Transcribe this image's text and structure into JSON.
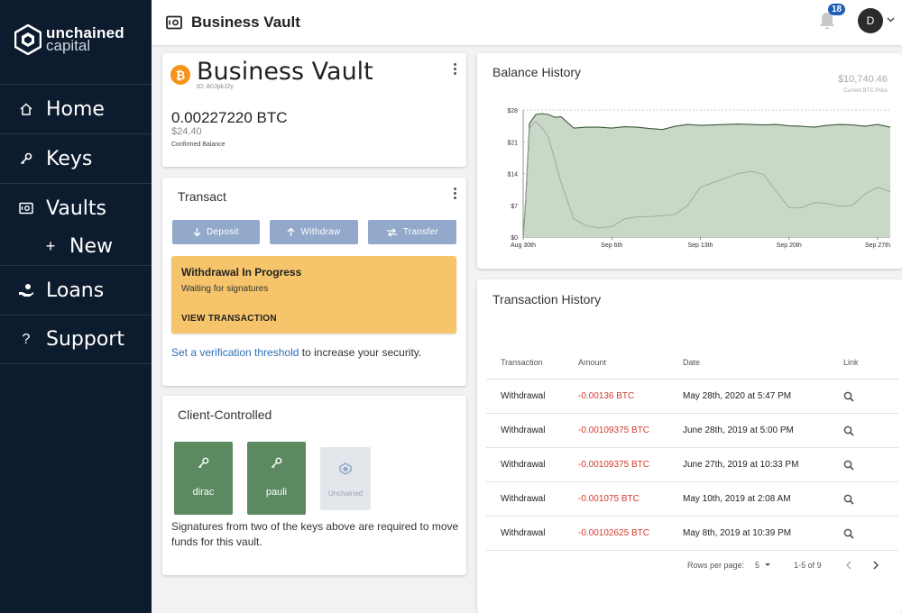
{
  "brand": {
    "line1": "unchained",
    "line2": "capital"
  },
  "nav": {
    "items": [
      {
        "label": "Home",
        "icon": "home-icon"
      },
      {
        "label": "Keys",
        "icon": "key-icon"
      },
      {
        "label": "Vaults",
        "icon": "vault-icon"
      },
      {
        "label": "New",
        "icon": "plus-icon"
      },
      {
        "label": "Loans",
        "icon": "hand-coin-icon"
      },
      {
        "label": "Support",
        "icon": "question-icon"
      }
    ]
  },
  "topbar": {
    "title": "Business Vault",
    "notifications": "18",
    "avatar": "D"
  },
  "vault": {
    "name": "Business Vault",
    "id": "ID: A0JpkJ2y",
    "coin_symbol": "₿",
    "balance_btc": "0.00227220 BTC",
    "balance_usd": "$24.40",
    "balance_label": "Confirmed Balance"
  },
  "transact": {
    "title": "Transact",
    "deposit": "Deposit",
    "withdraw": "Withdraw",
    "transfer": "Transfer",
    "warning_title": "Withdrawal In Progress",
    "warning_sub": "Waiting for signatures",
    "warning_link": "VIEW TRANSACTION",
    "security_link": "Set a verification threshold",
    "security_rest": " to increase your security."
  },
  "client": {
    "title": "Client-Controlled",
    "keys": [
      "dirac",
      "pauli",
      "Unchained"
    ],
    "text": "Signatures from two of the keys above are required to move funds for this vault."
  },
  "balance_history": {
    "title": "Balance History",
    "price": "$10,740.46",
    "price_label": "Current BTC Price"
  },
  "chart_data": {
    "type": "area",
    "yticks": [
      "$0",
      "$7",
      "$14",
      "$21",
      "$28"
    ],
    "ylim": [
      0,
      28
    ],
    "xticks": [
      "Aug 30th",
      "Sep 6th",
      "Sep 13th",
      "Sep 20th",
      "Sep 27th"
    ],
    "grid": true,
    "x": [
      0,
      0.2,
      0.5,
      1,
      1.5,
      2,
      2.5,
      3,
      4,
      5,
      6,
      7,
      8,
      9,
      10,
      11,
      12,
      13,
      14,
      15,
      16,
      17,
      18,
      19,
      20,
      21,
      22,
      23,
      24,
      25,
      26,
      27,
      28,
      29
    ],
    "series": [
      {
        "values": [
          0,
          8,
          25,
          27,
          27.2,
          27,
          26.4,
          26.5,
          24,
          24.2,
          24.2,
          24,
          24.3,
          24.2,
          23.9,
          23.7,
          24.4,
          24.8,
          24.6,
          24.7,
          24.8,
          24.9,
          24.8,
          24.7,
          24.8,
          24.5,
          24.4,
          24.2,
          24.6,
          24.8,
          24.7,
          24.4,
          24.8,
          24.2
        ]
      },
      {
        "values": [
          0,
          8,
          24,
          25.5,
          24,
          22,
          17,
          12,
          4,
          2.5,
          2,
          2.3,
          4,
          4.5,
          4.5,
          4.7,
          5,
          7,
          11,
          12,
          13,
          14,
          14.5,
          13.8,
          10,
          6.5,
          6.5,
          7.6,
          7.4,
          6.8,
          7,
          9.5,
          11,
          10
        ]
      }
    ]
  },
  "transactions": {
    "title": "Transaction History",
    "columns": [
      "Transaction",
      "Amount",
      "Date",
      "Link"
    ],
    "rows": [
      {
        "type": "Withdrawal",
        "amount": "-0.00136 BTC",
        "date": "May 28th, 2020 at 5:47 PM"
      },
      {
        "type": "Withdrawal",
        "amount": "-0.00109375 BTC",
        "date": "June 28th, 2019 at 5:00 PM"
      },
      {
        "type": "Withdrawal",
        "amount": "-0.00109375 BTC",
        "date": "June 27th, 2019 at 10:33 PM"
      },
      {
        "type": "Withdrawal",
        "amount": "-0.001075 BTC",
        "date": "May 10th, 2019 at 2:08 AM"
      },
      {
        "type": "Withdrawal",
        "amount": "-0.00102625 BTC",
        "date": "May 8th, 2019 at 10:39 PM"
      }
    ],
    "rows_per_page_label": "Rows per page:",
    "rows_per_page": "5",
    "range": "1-5 of 9"
  },
  "colors": {
    "sidebar": "#0d1b2e",
    "button": "#92a9cb",
    "warning": "#f5c46b",
    "key_green": "#5b8a60",
    "negative": "#d23a2e",
    "link": "#2f6fb7",
    "chart_fill": "#c9d8c7"
  }
}
